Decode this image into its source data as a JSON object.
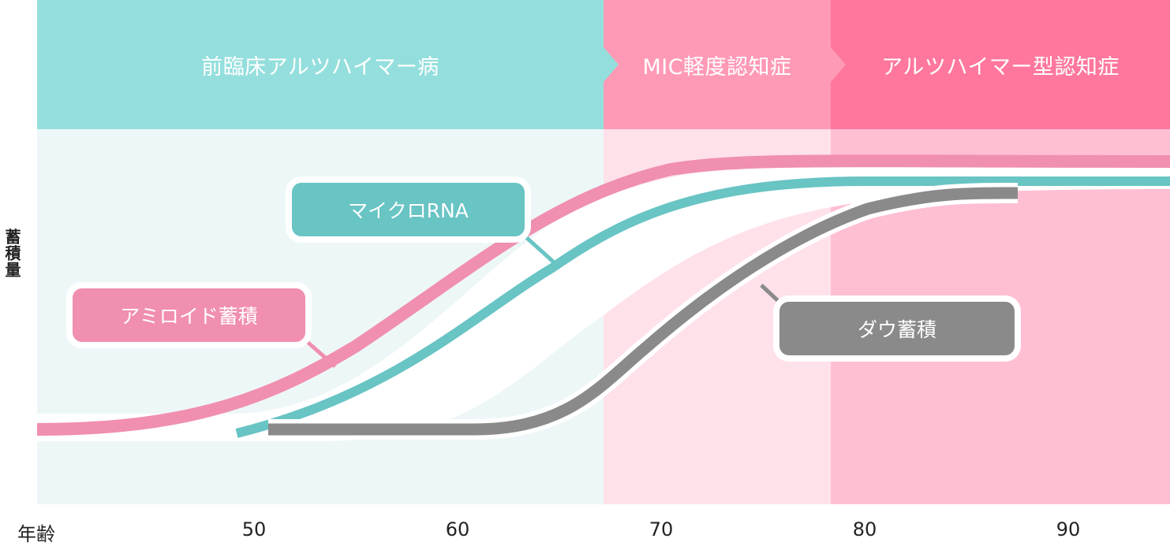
{
  "phases": [
    {
      "label": "前臨床アルツハイマー病",
      "color": "#94dfdd"
    },
    {
      "label": "MIC軽度認知症",
      "color": "#ff9ab6"
    },
    {
      "label": "アルツハイマー型認知症",
      "color": "#ff779d"
    }
  ],
  "y_axis_label": "蓄積量",
  "x_axis_label": "年齢",
  "x_ticks": [
    "50",
    "60",
    "70",
    "80",
    "90"
  ],
  "curves": [
    {
      "name": "アミロイド蓄積",
      "color": "#f08fb0"
    },
    {
      "name": "マイクロRNA",
      "color": "#69c4c4"
    },
    {
      "name": "ダウ蓄積",
      "color": "#8a8a8a"
    }
  ],
  "colors": {
    "bg_phase1": "#eef7f8",
    "bg_phase2": "#ffe1ea",
    "bg_phase3": "#ffbfd2"
  }
}
